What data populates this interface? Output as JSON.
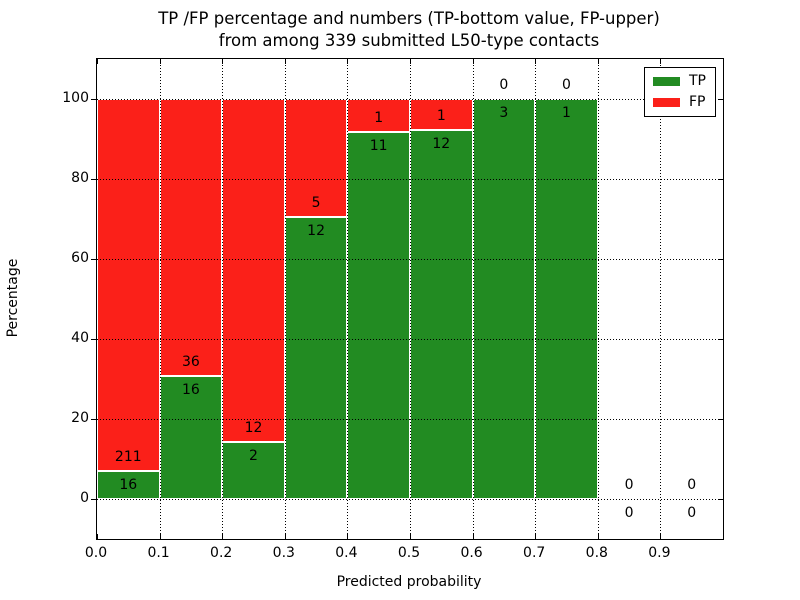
{
  "chart_data": {
    "type": "bar",
    "stacked": true,
    "normalized": "percent",
    "title_line1": "TP /FP percentage and numbers (TP-bottom value, FP-upper)",
    "title_line2": "from among 339 submitted L50-type contacts",
    "xlabel": "Predicted probability",
    "ylabel": "Percentage",
    "categories": [
      0.0,
      0.1,
      0.2,
      0.3,
      0.4,
      0.5,
      0.6,
      0.7,
      0.8,
      0.9
    ],
    "bin_width": 0.1,
    "series": [
      {
        "name": "TP",
        "color": "#228b22",
        "values": [
          16,
          16,
          2,
          12,
          11,
          12,
          3,
          1,
          0,
          0
        ]
      },
      {
        "name": "FP",
        "color": "#fb2019",
        "values": [
          211,
          36,
          12,
          5,
          1,
          1,
          0,
          0,
          0,
          0
        ]
      }
    ],
    "bar_edge_color": "#ffffff",
    "xticks": {
      "values": [
        0.0,
        0.1,
        0.2,
        0.3,
        0.4,
        0.5,
        0.6,
        0.7,
        0.8,
        0.9
      ],
      "labels": [
        "0.0",
        "0.1",
        "0.2",
        "0.3",
        "0.4",
        "0.5",
        "0.6",
        "0.7",
        "0.8",
        "0.9"
      ]
    },
    "yticks": {
      "values": [
        0,
        20,
        40,
        60,
        80,
        100
      ],
      "labels": [
        "0",
        "20",
        "40",
        "60",
        "80",
        "100"
      ]
    },
    "xlim": [
      0,
      1.0
    ],
    "ylim": [
      -10,
      110
    ],
    "grid": true,
    "grid_style": "dotted",
    "legend": {
      "position": "upper right",
      "items": [
        {
          "label": "TP",
          "color": "#228b22"
        },
        {
          "label": "FP",
          "color": "#fb2019"
        }
      ]
    }
  }
}
